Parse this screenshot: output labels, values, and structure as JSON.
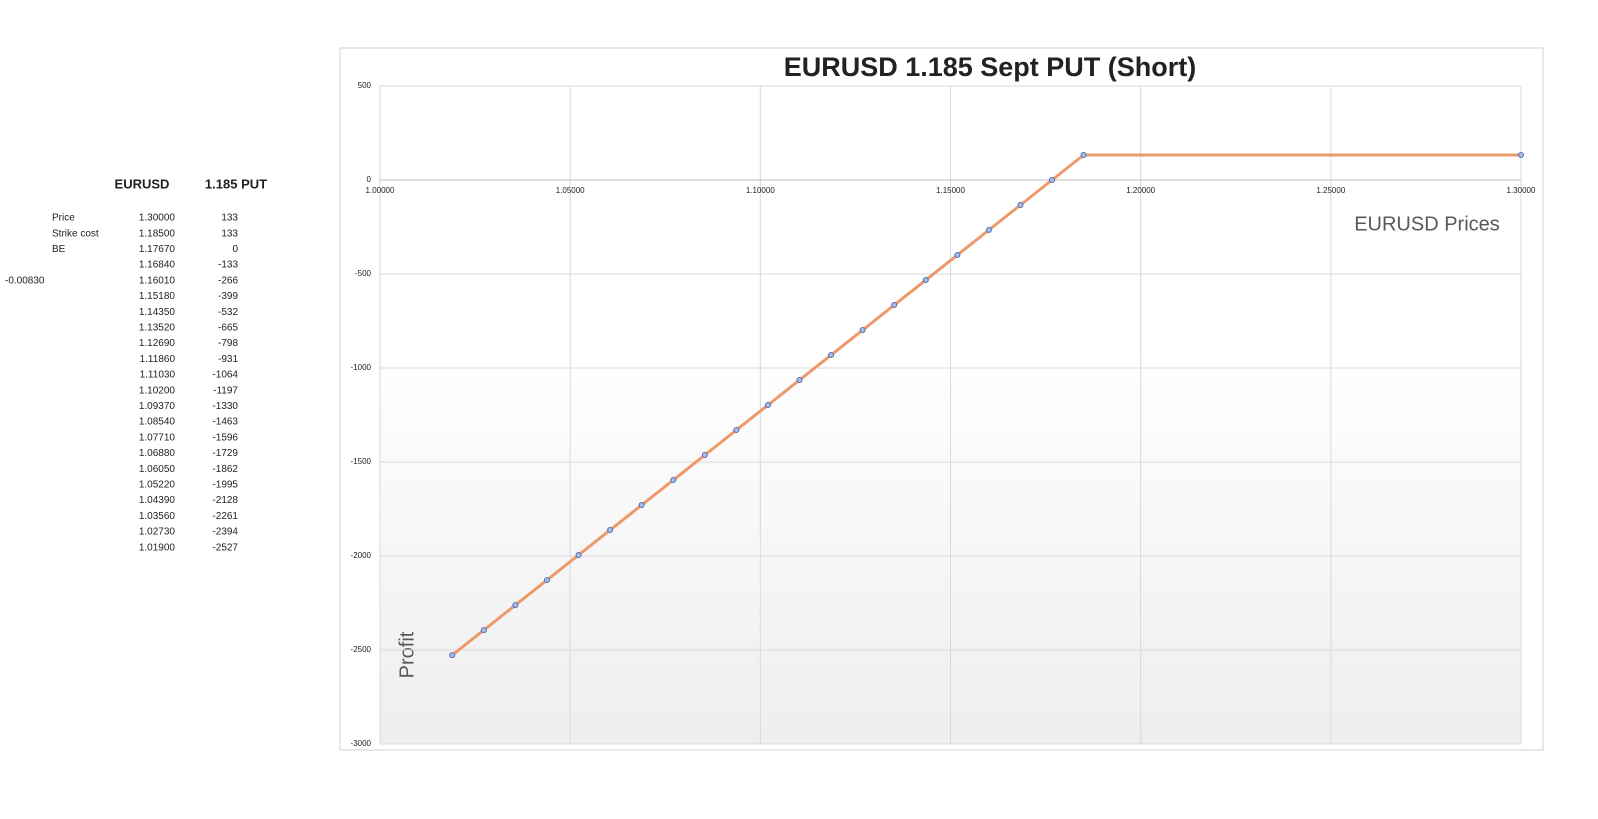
{
  "table": {
    "header": [
      "EURUSD",
      "1.185 PUT"
    ],
    "rows": [
      [
        null,
        "Price",
        "1.30000",
        "133"
      ],
      [
        null,
        "Strike cost",
        "1.18500",
        "133"
      ],
      [
        null,
        "BE",
        "1.17670",
        "0"
      ],
      [
        null,
        null,
        "1.16840",
        "-133"
      ],
      [
        "-0.00830",
        null,
        "1.16010",
        "-266"
      ],
      [
        null,
        null,
        "1.15180",
        "-399"
      ],
      [
        null,
        null,
        "1.14350",
        "-532"
      ],
      [
        null,
        null,
        "1.13520",
        "-665"
      ],
      [
        null,
        null,
        "1.12690",
        "-798"
      ],
      [
        null,
        null,
        "1.11860",
        "-931"
      ],
      [
        null,
        null,
        "1.11030",
        "-1064"
      ],
      [
        null,
        null,
        "1.10200",
        "-1197"
      ],
      [
        null,
        null,
        "1.09370",
        "-1330"
      ],
      [
        null,
        null,
        "1.08540",
        "-1463"
      ],
      [
        null,
        null,
        "1.07710",
        "-1596"
      ],
      [
        null,
        null,
        "1.06880",
        "-1729"
      ],
      [
        null,
        null,
        "1.06050",
        "-1862"
      ],
      [
        null,
        null,
        "1.05220",
        "-1995"
      ],
      [
        null,
        null,
        "1.04390",
        "-2128"
      ],
      [
        null,
        null,
        "1.03560",
        "-2261"
      ],
      [
        null,
        null,
        "1.02730",
        "-2394"
      ],
      [
        null,
        null,
        "1.01900",
        "-2527"
      ]
    ]
  },
  "chart_data": {
    "type": "scatter-line",
    "title": "EURUSD 1.185 Sept PUT (Short)",
    "x_label": "EURUSD Prices",
    "y_label": "Profit",
    "x": [
      1.3,
      1.185,
      1.1767,
      1.1684,
      1.1601,
      1.1518,
      1.1435,
      1.1352,
      1.1269,
      1.1186,
      1.1103,
      1.102,
      1.0937,
      1.0854,
      1.0771,
      1.0688,
      1.0605,
      1.0522,
      1.0439,
      1.0356,
      1.0273,
      1.019
    ],
    "values": [
      133,
      133,
      0,
      -133,
      -266,
      -399,
      -532,
      -665,
      -798,
      -931,
      -1064,
      -1197,
      -1330,
      -1463,
      -1596,
      -1729,
      -1862,
      -1995,
      -2128,
      -2261,
      -2394,
      -2527
    ],
    "color": "#ed9a6b",
    "marker_color": "#4f6fb5",
    "xlim": [
      1.0,
      1.3
    ],
    "xticks": [
      {
        "value": 1.0,
        "label": "1.00000"
      },
      {
        "value": 1.05,
        "label": "1.05000"
      },
      {
        "value": 1.1,
        "label": "1.10000"
      },
      {
        "value": 1.15,
        "label": "1.15000"
      },
      {
        "value": 1.2,
        "label": "1.20000"
      },
      {
        "value": 1.25,
        "label": "1.25000"
      },
      {
        "value": 1.3,
        "label": "1.30000"
      }
    ],
    "ylim": [
      -3000,
      500
    ],
    "yticks": [
      -3000,
      -2500,
      -2000,
      -1500,
      -1000,
      -500,
      0,
      500
    ],
    "grid": true
  }
}
